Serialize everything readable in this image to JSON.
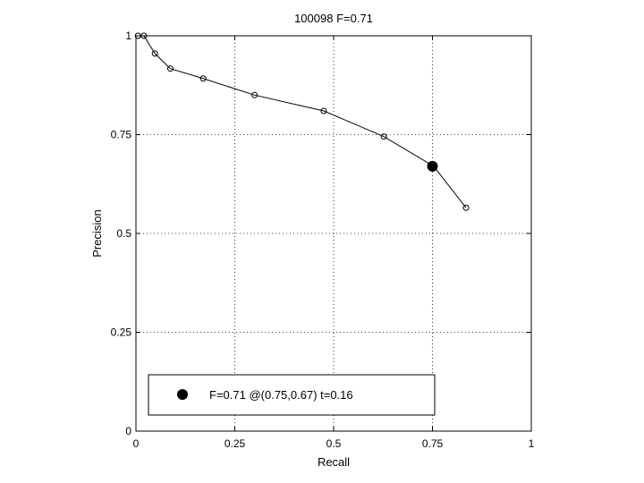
{
  "chart_data": {
    "type": "line",
    "title": "100098 F=0.71",
    "xlabel": "Recall",
    "ylabel": "Precision",
    "xlim": [
      0,
      1
    ],
    "ylim": [
      0,
      1
    ],
    "xticks": [
      0,
      0.25,
      0.5,
      0.75,
      1
    ],
    "yticks": [
      0,
      0.25,
      0.5,
      0.75,
      1
    ],
    "xtick_labels": [
      "0",
      "0.25",
      "0.5",
      "0.75",
      "1"
    ],
    "ytick_labels": [
      "0",
      "0.25",
      "0.5",
      "0.75",
      "1"
    ],
    "grid": true,
    "series": [
      {
        "x": [
          0.005,
          0.02,
          0.048,
          0.087,
          0.17,
          0.3,
          0.475,
          0.627,
          0.753,
          0.835
        ],
        "y": [
          1.0,
          1.0,
          0.955,
          0.917,
          0.892,
          0.85,
          0.81,
          0.745,
          0.67,
          0.565
        ]
      }
    ],
    "highlight_point": {
      "x": 0.75,
      "y": 0.67
    },
    "legend": {
      "position": "bottom",
      "entries": [
        "F=0.71 @(0.75,0.67) t=0.16"
      ]
    }
  }
}
